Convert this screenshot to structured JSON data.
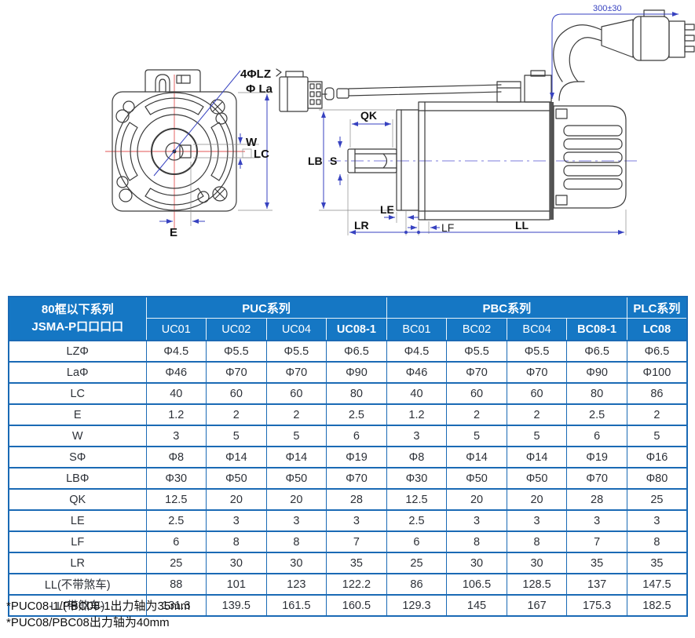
{
  "diagram": {
    "labels": {
      "lz": "4ΦLZ",
      "la": "Φ La",
      "w": "W",
      "lc": "LC",
      "e": "E",
      "qk": "QK",
      "lb": "LB",
      "s": "S",
      "le": "LE",
      "lr": "LR",
      "lf": "LF",
      "ll": "LL",
      "cable": "300±30"
    }
  },
  "table": {
    "corner": [
      "80框以下系列",
      "JSMA-P口口口口"
    ],
    "groups": [
      {
        "label": "PUC系列",
        "span": 4
      },
      {
        "label": "PBC系列",
        "span": 4
      },
      {
        "label": "PLC系列",
        "span": 1
      }
    ],
    "columns": [
      {
        "label": "UC01",
        "bold": false
      },
      {
        "label": "UC02",
        "bold": false
      },
      {
        "label": "UC04",
        "bold": false
      },
      {
        "label": "UC08-1",
        "bold": true
      },
      {
        "label": "BC01",
        "bold": false
      },
      {
        "label": "BC02",
        "bold": false
      },
      {
        "label": "BC04",
        "bold": false
      },
      {
        "label": "BC08-1",
        "bold": true
      },
      {
        "label": "LC08",
        "bold": true
      }
    ],
    "rows": [
      {
        "param": "LZΦ",
        "values": [
          "Φ4.5",
          "Φ5.5",
          "Φ5.5",
          "Φ6.5",
          "Φ4.5",
          "Φ5.5",
          "Φ5.5",
          "Φ6.5",
          "Φ6.5"
        ]
      },
      {
        "param": "LaΦ",
        "values": [
          "Φ46",
          "Φ70",
          "Φ70",
          "Φ90",
          "Φ46",
          "Φ70",
          "Φ70",
          "Φ90",
          "Φ100"
        ]
      },
      {
        "param": "LC",
        "values": [
          "40",
          "60",
          "60",
          "80",
          "40",
          "60",
          "60",
          "80",
          "86"
        ]
      },
      {
        "param": "E",
        "values": [
          "1.2",
          "2",
          "2",
          "2.5",
          "1.2",
          "2",
          "2",
          "2.5",
          "2"
        ]
      },
      {
        "param": "W",
        "values": [
          "3",
          "5",
          "5",
          "6",
          "3",
          "5",
          "5",
          "6",
          "5"
        ]
      },
      {
        "param": "SΦ",
        "values": [
          "Φ8",
          "Φ14",
          "Φ14",
          "Φ19",
          "Φ8",
          "Φ14",
          "Φ14",
          "Φ19",
          "Φ16"
        ]
      },
      {
        "param": "LBΦ",
        "values": [
          "Φ30",
          "Φ50",
          "Φ50",
          "Φ70",
          "Φ30",
          "Φ50",
          "Φ50",
          "Φ70",
          "Φ80"
        ]
      },
      {
        "param": "QK",
        "values": [
          "12.5",
          "20",
          "20",
          "28",
          "12.5",
          "20",
          "20",
          "28",
          "25"
        ]
      },
      {
        "param": "LE",
        "values": [
          "2.5",
          "3",
          "3",
          "3",
          "2.5",
          "3",
          "3",
          "3",
          "3"
        ]
      },
      {
        "param": "LF",
        "values": [
          "6",
          "8",
          "8",
          "7",
          "6",
          "8",
          "8",
          "7",
          "8"
        ]
      },
      {
        "param": "LR",
        "values": [
          "25",
          "30",
          "30",
          "35",
          "25",
          "30",
          "30",
          "35",
          "35"
        ]
      },
      {
        "param": "LL(不带煞车)",
        "values": [
          "88",
          "101",
          "123",
          "122.2",
          "86",
          "106.5",
          "128.5",
          "137",
          "147.5"
        ]
      },
      {
        "param": "LL(带煞车)",
        "values": [
          "131.3",
          "139.5",
          "161.5",
          "160.5",
          "129.3",
          "145",
          "167",
          "175.3",
          "182.5"
        ]
      }
    ]
  },
  "notes": [
    "*PUC08-1/PBC08-1出力轴为35mm",
    "*PUC08/PBC08出力轴为40mm"
  ],
  "colors": {
    "header_bg": "#1577c4",
    "table_border": "#1a6ab5",
    "body_text": "#2d3138",
    "dimension": "#3742c0",
    "centerline_red": "#e25555"
  }
}
